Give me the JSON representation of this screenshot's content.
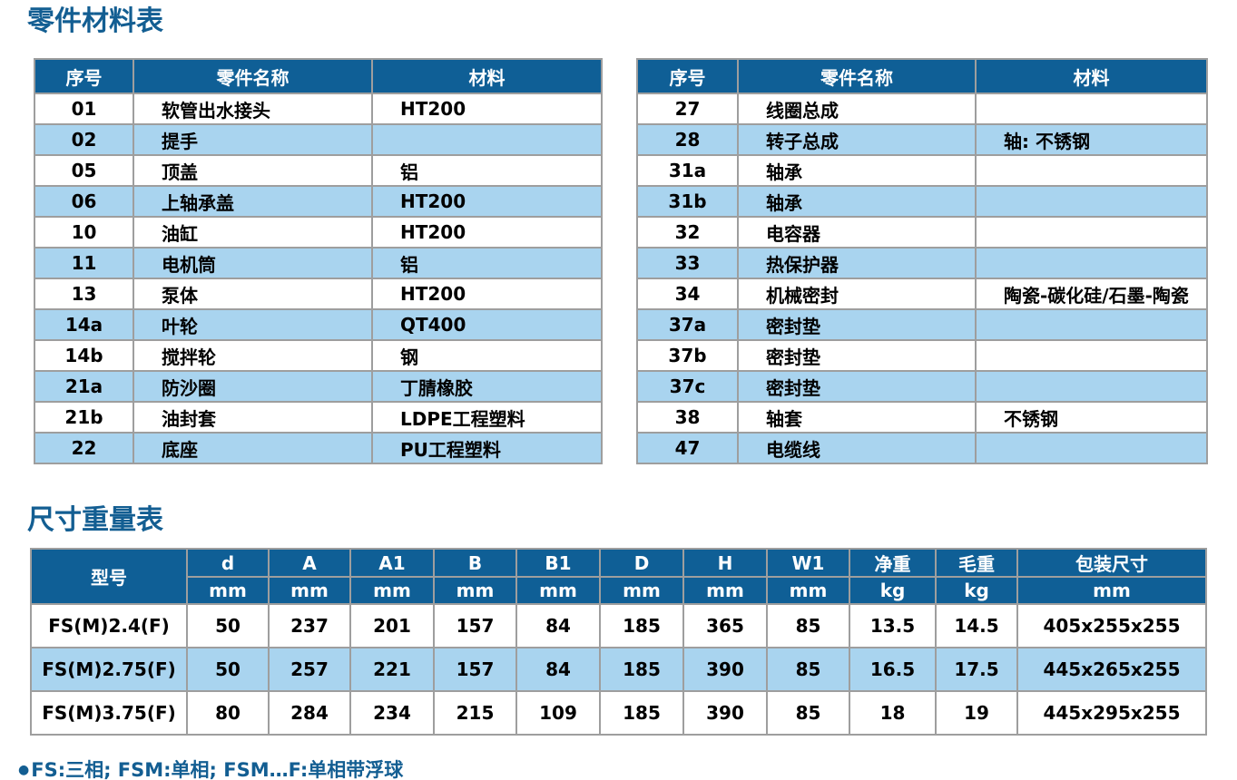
{
  "page": {
    "parts_title": "零件材料表",
    "dims_title": "尺寸重量表",
    "footnote_bullet": "●",
    "footnote_text": "FS:三相; FSM:单相; FSM…F:单相带浮球"
  },
  "colors": {
    "header_blue": "#0f5f96",
    "stripe_blue": "#a9d4ef",
    "title_blue": "#135e92",
    "grid_grey": "#9e9e9e"
  },
  "parts_table": {
    "headers": [
      "序号",
      "零件名称",
      "材料"
    ],
    "left_rows": [
      {
        "no": "01",
        "name": "软管出水接头",
        "material": "HT200"
      },
      {
        "no": "02",
        "name": "提手",
        "material": ""
      },
      {
        "no": "05",
        "name": "顶盖",
        "material": "铝"
      },
      {
        "no": "06",
        "name": "上轴承盖",
        "material": "HT200"
      },
      {
        "no": "10",
        "name": "油缸",
        "material": "HT200"
      },
      {
        "no": "11",
        "name": "电机筒",
        "material": "铝"
      },
      {
        "no": "13",
        "name": "泵体",
        "material": "HT200"
      },
      {
        "no": "14a",
        "name": "叶轮",
        "material": "QT400"
      },
      {
        "no": "14b",
        "name": "搅拌轮",
        "material": "钢"
      },
      {
        "no": "21a",
        "name": "防沙圈",
        "material": "丁腈橡胶"
      },
      {
        "no": "21b",
        "name": "油封套",
        "material": "LDPE工程塑料"
      },
      {
        "no": "22",
        "name": "底座",
        "material": "PU工程塑料"
      }
    ],
    "right_rows": [
      {
        "no": "27",
        "name": "线圈总成",
        "material": ""
      },
      {
        "no": "28",
        "name": "转子总成",
        "material": "轴: 不锈钢"
      },
      {
        "no": "31a",
        "name": "轴承",
        "material": ""
      },
      {
        "no": "31b",
        "name": "轴承",
        "material": ""
      },
      {
        "no": "32",
        "name": "电容器",
        "material": ""
      },
      {
        "no": "33",
        "name": "热保护器",
        "material": ""
      },
      {
        "no": "34",
        "name": "机械密封",
        "material": "陶瓷-碳化硅/石墨-陶瓷"
      },
      {
        "no": "37a",
        "name": "密封垫",
        "material": ""
      },
      {
        "no": "37b",
        "name": "密封垫",
        "material": ""
      },
      {
        "no": "37c",
        "name": "密封垫",
        "material": ""
      },
      {
        "no": "38",
        "name": "轴套",
        "material": "不锈钢"
      },
      {
        "no": "47",
        "name": "电缆线",
        "material": ""
      }
    ]
  },
  "dimensions_table": {
    "model_header": "型号",
    "columns": [
      {
        "label": "d",
        "unit": "mm"
      },
      {
        "label": "A",
        "unit": "mm"
      },
      {
        "label": "A1",
        "unit": "mm"
      },
      {
        "label": "B",
        "unit": "mm"
      },
      {
        "label": "B1",
        "unit": "mm"
      },
      {
        "label": "D",
        "unit": "mm"
      },
      {
        "label": "H",
        "unit": "mm"
      },
      {
        "label": "W1",
        "unit": "mm"
      },
      {
        "label": "净重",
        "unit": "kg"
      },
      {
        "label": "毛重",
        "unit": "kg"
      },
      {
        "label": "包装尺寸",
        "unit": "mm"
      }
    ],
    "rows": [
      {
        "model": "FS(M)2.4(F)",
        "values": [
          "50",
          "237",
          "201",
          "157",
          "84",
          "185",
          "365",
          "85",
          "13.5",
          "14.5",
          "405x255x255"
        ]
      },
      {
        "model": "FS(M)2.75(F)",
        "values": [
          "50",
          "257",
          "221",
          "157",
          "84",
          "185",
          "390",
          "85",
          "16.5",
          "17.5",
          "445x265x255"
        ]
      },
      {
        "model": "FS(M)3.75(F)",
        "values": [
          "80",
          "284",
          "234",
          "215",
          "109",
          "185",
          "390",
          "85",
          "18",
          "19",
          "445x295x255"
        ]
      }
    ]
  }
}
